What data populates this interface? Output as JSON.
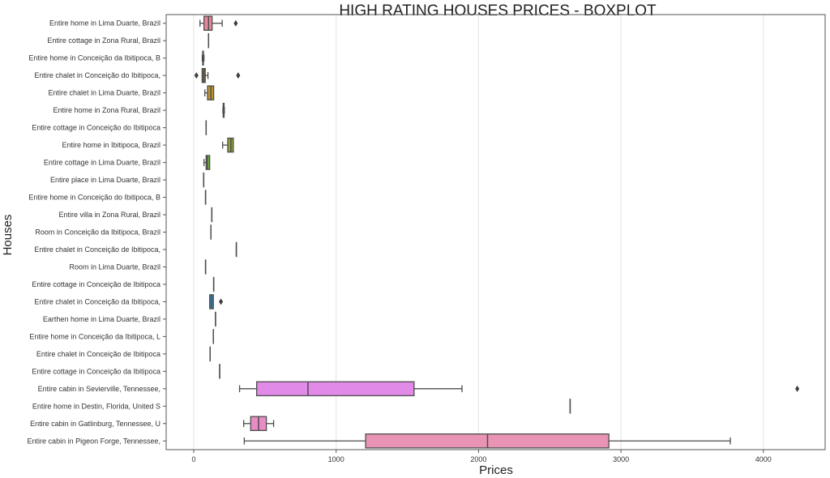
{
  "chart_data": {
    "type": "boxplot",
    "orientation": "horizontal",
    "title": "HIGH RATING HOUSES PRICES - BOXPLOT",
    "xlabel": "Prices",
    "ylabel": "Houses",
    "xlim": [
      -200,
      4400
    ],
    "xticks": [
      0,
      1000,
      2000,
      3000,
      4000
    ],
    "grid": "vertical",
    "line_color": "#4d4d4d",
    "rows": [
      {
        "label": "Entire home in Lima Duarte, Brazil",
        "min": 44,
        "q1": 72,
        "median": 104,
        "q3": 129,
        "max": 200,
        "outliers": [
          295
        ],
        "color": "#e9879a"
      },
      {
        "label": "Entire cottage in Zona Rural, Brazil",
        "min": 104,
        "q1": 104,
        "median": 104,
        "q3": 104,
        "max": 104,
        "outliers": [],
        "color": "#e58a6a"
      },
      {
        "label": "Entire home in Conceição da Ibitipoca, B",
        "min": 60,
        "q1": 63,
        "median": 66,
        "q3": 68,
        "max": 72,
        "outliers": [],
        "color": "#c99356"
      },
      {
        "label": "Entire chalet in Conceição do Ibitipoca,",
        "min": 59,
        "q1": 59,
        "median": 70,
        "q3": 81,
        "max": 100,
        "outliers": [
          19,
          312
        ],
        "color": "#8a6a3c"
      },
      {
        "label": "Entire chalet in Lima Duarte, Brazil",
        "min": 78,
        "q1": 97,
        "median": 121,
        "q3": 140,
        "max": 140,
        "outliers": [],
        "color": "#c0962f"
      },
      {
        "label": "Entire home in Zona Rural, Brazil",
        "min": 205,
        "q1": 207,
        "median": 210,
        "q3": 213,
        "max": 215,
        "outliers": [],
        "color": "#a8a052"
      },
      {
        "label": "Entire cottage in Conceição do Ibitipoca",
        "min": 87,
        "q1": 87,
        "median": 87,
        "q3": 87,
        "max": 87,
        "outliers": [],
        "color": "#9aa44f"
      },
      {
        "label": "Entire home in Ibitipoca, Brazil",
        "min": 203,
        "q1": 239,
        "median": 261,
        "q3": 278,
        "max": 278,
        "outliers": [],
        "color": "#8fa531"
      },
      {
        "label": "Entire cottage in Lima Duarte, Brazil",
        "min": 72,
        "q1": 87,
        "median": 95,
        "q3": 112,
        "max": 112,
        "outliers": [],
        "color": "#6aac3c"
      },
      {
        "label": "Entire place in Lima Duarte, Brazil",
        "min": 70,
        "q1": 70,
        "median": 70,
        "q3": 70,
        "max": 70,
        "outliers": [],
        "color": "#4fae5a"
      },
      {
        "label": "Entire home in Conceição do Ibitipoca, B",
        "min": 83,
        "q1": 83,
        "median": 83,
        "q3": 83,
        "max": 83,
        "outliers": [],
        "color": "#45ad7a"
      },
      {
        "label": "Entire villa in Zona Rural, Brazil",
        "min": 127,
        "q1": 127,
        "median": 127,
        "q3": 127,
        "max": 127,
        "outliers": [],
        "color": "#47ac8f"
      },
      {
        "label": "Room in Conceição da Ibitipoca, Brazil",
        "min": 121,
        "q1": 121,
        "median": 121,
        "q3": 121,
        "max": 121,
        "outliers": [],
        "color": "#48ab9d"
      },
      {
        "label": "Entire chalet in Conceição de Ibitipoca,",
        "min": 299,
        "q1": 299,
        "median": 299,
        "q3": 299,
        "max": 299,
        "outliers": [],
        "color": "#49aaa8"
      },
      {
        "label": "Room in Lima Duarte, Brazil",
        "min": 83,
        "q1": 83,
        "median": 83,
        "q3": 83,
        "max": 83,
        "outliers": [],
        "color": "#4aa8b3"
      },
      {
        "label": "Entire cottage in Conceição de Ibitipoca",
        "min": 140,
        "q1": 140,
        "median": 140,
        "q3": 140,
        "max": 140,
        "outliers": [],
        "color": "#4ca6bf"
      },
      {
        "label": "Entire chalet in Conceição da Ibitipoca,",
        "min": 112,
        "q1": 112,
        "median": 125,
        "q3": 138,
        "max": 138,
        "outliers": [
          191
        ],
        "color": "#3b8fc4"
      },
      {
        "label": "Earthen home in Lima Duarte, Brazil",
        "min": 153,
        "q1": 153,
        "median": 153,
        "q3": 153,
        "max": 153,
        "outliers": [],
        "color": "#6e9ae0"
      },
      {
        "label": "Entire home in Conceição da Ibitipoca, L",
        "min": 138,
        "q1": 138,
        "median": 138,
        "q3": 138,
        "max": 138,
        "outliers": [],
        "color": "#8f92e2"
      },
      {
        "label": "Entire chalet in Conceição de Ibitipoca ",
        "min": 115,
        "q1": 115,
        "median": 115,
        "q3": 115,
        "max": 115,
        "outliers": [],
        "color": "#a98ae3"
      },
      {
        "label": "Entire cottage in Conceição da Ibitipoca",
        "min": 182,
        "q1": 182,
        "median": 182,
        "q3": 182,
        "max": 182,
        "outliers": [],
        "color": "#c283e2"
      },
      {
        "label": "Entire cabin in Sevierville, Tennessee, ",
        "min": 322,
        "q1": 442,
        "median": 802,
        "q3": 1547,
        "max": 1884,
        "outliers": [
          4238
        ],
        "color": "#e28ae8"
      },
      {
        "label": "Entire home in Destin, Florida, United S",
        "min": 2643,
        "q1": 2643,
        "median": 2643,
        "q3": 2643,
        "max": 2643,
        "outliers": [],
        "color": "#e68ad4"
      },
      {
        "label": "Entire cabin in Gatlinburg, Tennessee, U",
        "min": 351,
        "q1": 400,
        "median": 455,
        "q3": 510,
        "max": 561,
        "outliers": [],
        "color": "#e98bc4"
      },
      {
        "label": "Entire cabin in Pigeon Forge, Tennessee,",
        "min": 355,
        "q1": 1207,
        "median": 2063,
        "q3": 2915,
        "max": 3768,
        "outliers": [],
        "color": "#e994b4"
      }
    ]
  }
}
